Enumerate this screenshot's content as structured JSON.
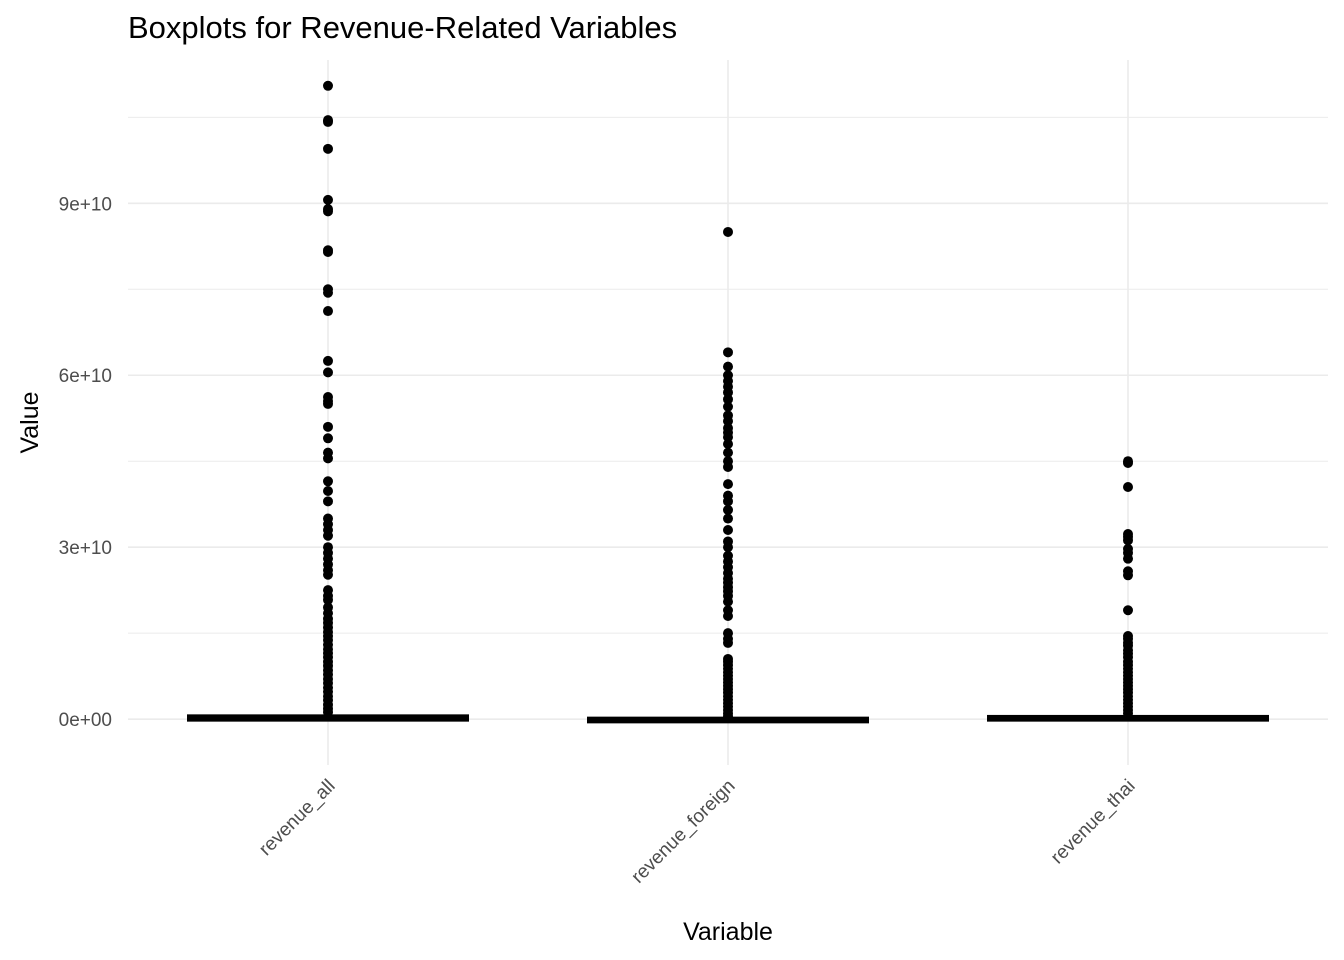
{
  "chart_data": {
    "type": "boxplot",
    "title": "Boxplots for Revenue-Related Variables",
    "xlabel": "Variable",
    "ylabel": "Value",
    "categories": [
      "revenue_all",
      "revenue_foreign",
      "revenue_thai"
    ],
    "ylim": [
      -8000000000,
      115000000000
    ],
    "yticks": [
      {
        "value": 0,
        "label": "0e+00"
      },
      {
        "value": 30000000000,
        "label": "3e+10"
      },
      {
        "value": 60000000000,
        "label": "6e+10"
      },
      {
        "value": 90000000000,
        "label": "9e+10"
      }
    ],
    "grid": true,
    "colors": {
      "points": "#000000",
      "box": "#000000",
      "grid": "#ebebeb"
    },
    "series": [
      {
        "category": "revenue_all",
        "median": 200000000,
        "q1": 0,
        "q3": 400000000,
        "whisker_low": 0,
        "whisker_high": 900000000,
        "outliers": [
          110500000000,
          104500000000,
          104200000000,
          99500000000,
          90600000000,
          89000000000,
          88600000000,
          81800000000,
          81500000000,
          75000000000,
          74400000000,
          71200000000,
          62500000000,
          60500000000,
          56200000000,
          55500000000,
          55000000000,
          51000000000,
          49000000000,
          46500000000,
          45500000000,
          41500000000,
          39800000000,
          38000000000,
          35000000000,
          34000000000,
          33000000000,
          32000000000,
          30000000000,
          29000000000,
          28000000000,
          27000000000,
          26000000000,
          25200000000,
          22500000000,
          21500000000,
          20800000000,
          19500000000,
          18500000000,
          17500000000,
          16800000000,
          16000000000,
          15200000000,
          14500000000,
          13800000000,
          13000000000,
          12200000000,
          11500000000,
          10800000000,
          10000000000,
          9300000000,
          8500000000,
          7800000000,
          7000000000,
          6300000000,
          5500000000,
          4800000000,
          4000000000,
          3300000000,
          2500000000,
          1800000000,
          1200000000
        ]
      },
      {
        "category": "revenue_foreign",
        "median": -200000000,
        "q1": -300000000,
        "q3": 0,
        "whisker_low": -300000000,
        "whisker_high": 300000000,
        "outliers": [
          85000000000,
          64000000000,
          61500000000,
          60000000000,
          59000000000,
          58000000000,
          57000000000,
          55800000000,
          54500000000,
          53000000000,
          52000000000,
          50800000000,
          50000000000,
          49200000000,
          48000000000,
          46500000000,
          45000000000,
          44000000000,
          41000000000,
          39000000000,
          38000000000,
          36500000000,
          35000000000,
          33000000000,
          31000000000,
          30000000000,
          28500000000,
          27500000000,
          26500000000,
          25500000000,
          24500000000,
          23800000000,
          23000000000,
          22300000000,
          21500000000,
          20500000000,
          19000000000,
          18000000000,
          15000000000,
          14000000000,
          13300000000,
          10500000000,
          10000000000,
          9400000000,
          8800000000,
          8200000000,
          7600000000,
          7000000000,
          6400000000,
          5800000000,
          5200000000,
          4600000000,
          4000000000,
          3400000000,
          2800000000,
          2200000000,
          1600000000,
          1000000000,
          500000000
        ]
      },
      {
        "category": "revenue_thai",
        "median": 200000000,
        "q1": 0,
        "q3": 300000000,
        "whisker_low": 0,
        "whisker_high": 700000000,
        "outliers": [
          45000000000,
          44700000000,
          40500000000,
          32300000000,
          31800000000,
          31200000000,
          29700000000,
          29000000000,
          28000000000,
          25800000000,
          25100000000,
          19000000000,
          14500000000,
          14000000000,
          13300000000,
          12800000000,
          12000000000,
          11400000000,
          10800000000,
          10000000000,
          9400000000,
          8800000000,
          8200000000,
          7600000000,
          7000000000,
          6400000000,
          5800000000,
          5200000000,
          4600000000,
          4000000000,
          3400000000,
          2800000000,
          2200000000,
          1600000000,
          1000000000
        ]
      }
    ]
  }
}
